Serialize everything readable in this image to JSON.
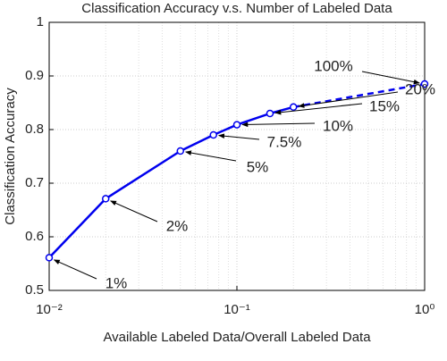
{
  "chart_data": {
    "type": "line",
    "title": "Classification Accuracy v.s. Number of Labeled Data",
    "x_label": "Available Labeled Data/Overall Labeled Data",
    "y_label": "Classification Accuracy",
    "x": [
      0.01,
      0.02,
      0.05,
      0.075,
      0.1,
      0.15,
      0.2,
      1
    ],
    "series": [
      {
        "color": "#0000ee",
        "marker": "o",
        "values": [
          0.561,
          0.671,
          0.76,
          0.79,
          0.809,
          0.83,
          0.842,
          0.885
        ],
        "segment_styles": [
          "solid",
          "solid",
          "solid",
          "solid",
          "solid",
          "solid",
          "dashed"
        ]
      }
    ],
    "point_labels": [
      "1%",
      "2%",
      "5%",
      "7.5%",
      "10%",
      "15%",
      "20%",
      "100%"
    ],
    "xscale": "log",
    "xlim": [
      0.01,
      1
    ],
    "ylim": [
      0.5,
      1
    ],
    "xticks": [
      {
        "value": 0.01,
        "label": "10⁻²"
      },
      {
        "value": 0.1,
        "label": "10⁻¹"
      },
      {
        "value": 1,
        "label": "10⁰"
      }
    ],
    "yticks": [
      0.5,
      0.6,
      0.7,
      0.8,
      0.9,
      1
    ],
    "grid": true
  }
}
